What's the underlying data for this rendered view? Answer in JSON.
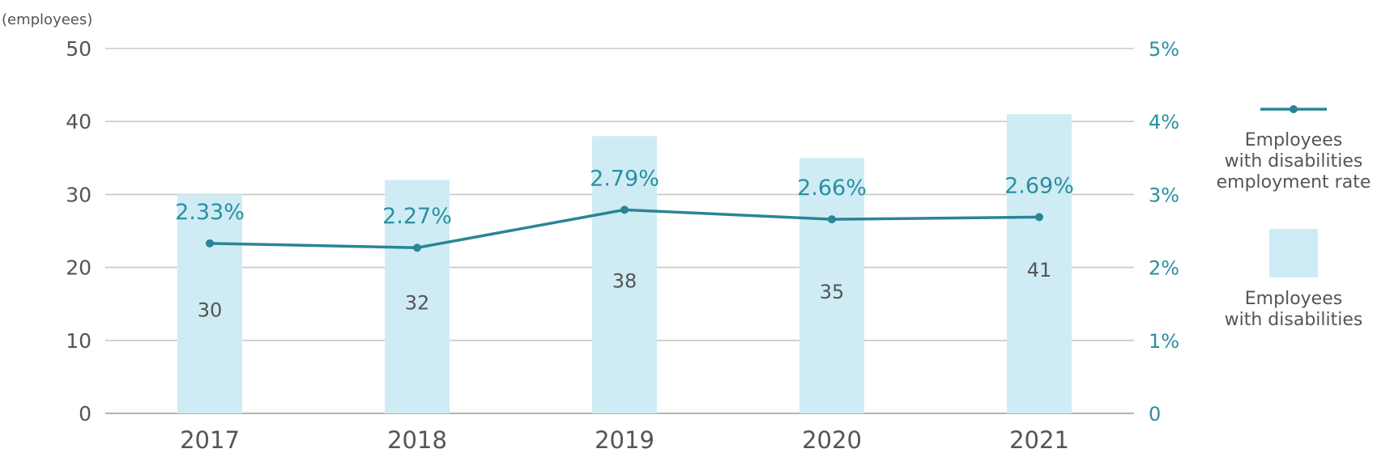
{
  "chart_data": {
    "type": "bar",
    "categories": [
      "2017",
      "2018",
      "2019",
      "2020",
      "2021"
    ],
    "series": [
      {
        "name": "Employees with disabilities",
        "type": "bar",
        "axis": "left",
        "values": [
          30,
          32,
          38,
          35,
          41
        ],
        "labels": [
          "30",
          "32",
          "38",
          "35",
          "41"
        ],
        "color": "#cfecf5"
      },
      {
        "name": "Employees with disabilities employment rate",
        "type": "line",
        "axis": "right",
        "values": [
          2.33,
          2.27,
          2.79,
          2.66,
          2.69
        ],
        "labels": [
          "2.33%",
          "2.27%",
          "2.79%",
          "2.66%",
          "2.69%"
        ],
        "color": "#2a8596"
      }
    ],
    "y_left": {
      "unit_label": "(employees)",
      "ylim": [
        0,
        50
      ],
      "ticks": [
        0,
        10,
        20,
        30,
        40,
        50
      ],
      "tick_labels": [
        "0",
        "10",
        "20",
        "30",
        "40",
        "50"
      ]
    },
    "y_right": {
      "ylim": [
        0,
        5
      ],
      "ticks": [
        0,
        1,
        2,
        3,
        4,
        5
      ],
      "tick_labels": [
        "0",
        "1%",
        "2%",
        "3%",
        "4%",
        "5%"
      ],
      "color": "#2a8fa0"
    },
    "grid": true,
    "legend_position": "right",
    "legend": [
      {
        "kind": "line",
        "lines": [
          "Employees",
          "with disabilities",
          "employment rate"
        ]
      },
      {
        "kind": "bar",
        "lines": [
          "Employees",
          "with disabilities"
        ]
      }
    ]
  }
}
